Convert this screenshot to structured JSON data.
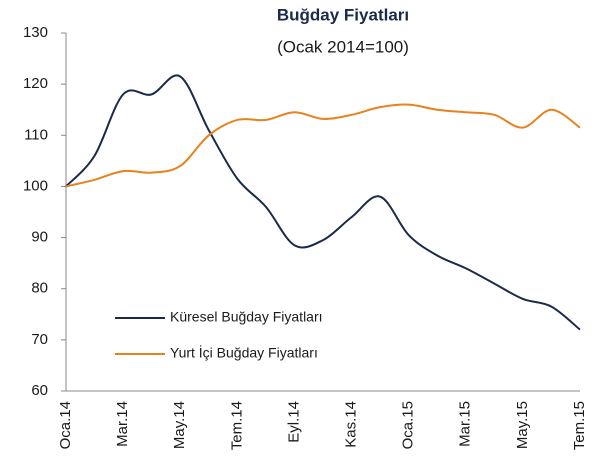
{
  "chart_data": {
    "type": "line",
    "title": "Buğday Fiyatları",
    "subtitle": "(Ocak 2014=100)",
    "categories": [
      "Oca.14",
      null,
      "Mar.14",
      null,
      "May.14",
      null,
      "Tem.14",
      null,
      "Eyl.14",
      null,
      "Kas.14",
      null,
      "Oca.15",
      null,
      "Mar.15",
      null,
      "May.15",
      null,
      "Tem.15"
    ],
    "series": [
      {
        "name": "Küresel Buğday Fiyatları",
        "color": "#1b2a4a",
        "values": [
          100,
          106,
          118,
          118,
          121.5,
          111,
          101.5,
          96,
          88.5,
          89.5,
          94,
          98,
          90.5,
          86.5,
          84,
          81,
          78,
          76.5,
          72
        ]
      },
      {
        "name": "Yurt İçi Buğday Fiyatları",
        "color": "#e8821e",
        "values": [
          100,
          101.3,
          103,
          102.7,
          104,
          110,
          113,
          113,
          114.5,
          113.2,
          114,
          115.5,
          116,
          115,
          114.5,
          114,
          111.5,
          115,
          111.5
        ]
      }
    ],
    "ylim": [
      60,
      130
    ],
    "yticks": [
      60,
      70,
      80,
      90,
      100,
      110,
      120,
      130
    ],
    "legend": "lower left",
    "grid": false
  }
}
